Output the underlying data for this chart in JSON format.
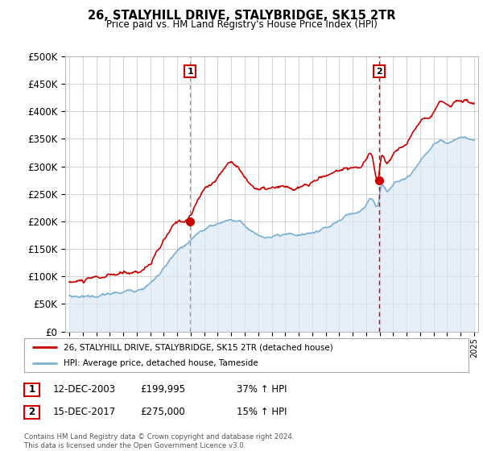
{
  "title": "26, STALYHILL DRIVE, STALYBRIDGE, SK15 2TR",
  "subtitle": "Price paid vs. HM Land Registry's House Price Index (HPI)",
  "legend_line1": "26, STALYHILL DRIVE, STALYBRIDGE, SK15 2TR (detached house)",
  "legend_line2": "HPI: Average price, detached house, Tameside",
  "annotation1_date": "12-DEC-2003",
  "annotation1_price": "£199,995",
  "annotation1_hpi": "37% ↑ HPI",
  "annotation2_date": "15-DEC-2017",
  "annotation2_price": "£275,000",
  "annotation2_hpi": "15% ↑ HPI",
  "footer": "Contains HM Land Registry data © Crown copyright and database right 2024.\nThis data is licensed under the Open Government Licence v3.0.",
  "red_color": "#cc0000",
  "blue_color": "#7ab0d4",
  "blue_fill": "#dce9f5",
  "vline1_color": "#aaaaaa",
  "vline2_color": "#cc0000",
  "bg_color": "#ffffff",
  "grid_color": "#cccccc",
  "ylim": [
    0,
    500000
  ],
  "yticks": [
    0,
    50000,
    100000,
    150000,
    200000,
    250000,
    300000,
    350000,
    400000,
    450000,
    500000
  ],
  "sale1_x": 2003.95,
  "sale1_y": 199995,
  "sale2_x": 2017.96,
  "sale2_y": 275000,
  "xmin": 1994.7,
  "xmax": 2025.3
}
